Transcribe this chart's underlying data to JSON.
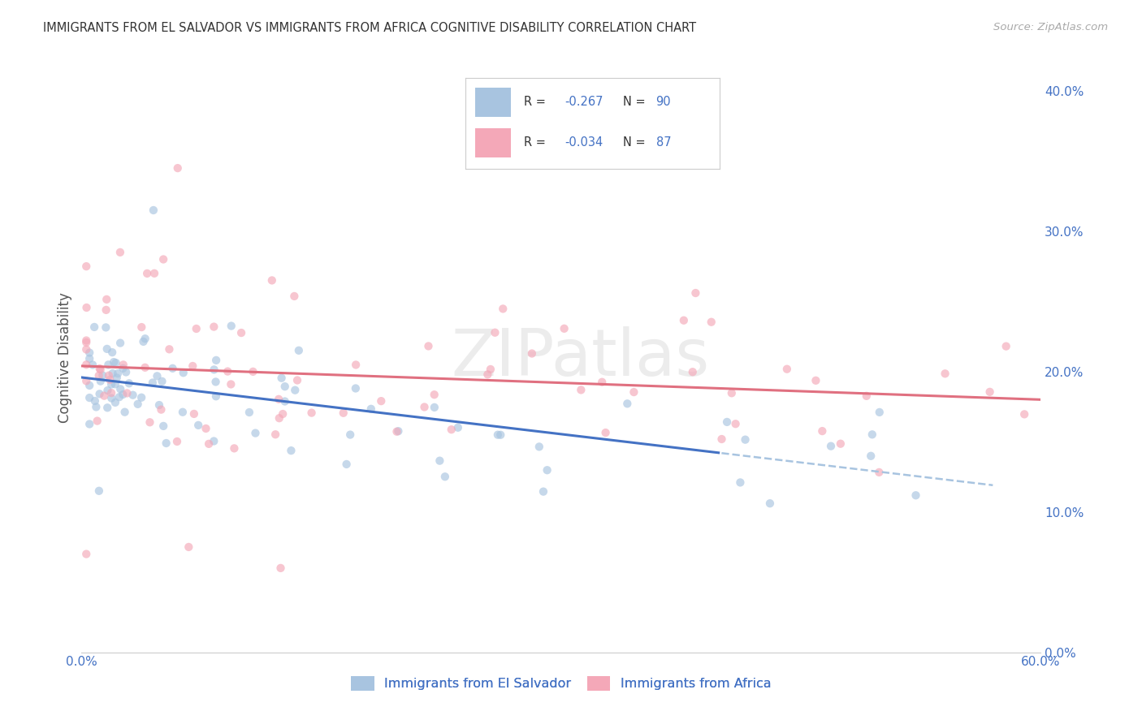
{
  "title": "IMMIGRANTS FROM EL SALVADOR VS IMMIGRANTS FROM AFRICA COGNITIVE DISABILITY CORRELATION CHART",
  "source": "Source: ZipAtlas.com",
  "ylabel": "Cognitive Disability",
  "xlim": [
    0,
    60
  ],
  "ylim": [
    0,
    42
  ],
  "R_salvador": -0.267,
  "N_salvador": 90,
  "R_africa": -0.034,
  "N_africa": 87,
  "color_salvador": "#a8c4e0",
  "color_africa": "#f4a8b8",
  "trendline_color_salvador": "#4472c4",
  "trendline_color_africa": "#e07080",
  "trendline_dashed_color_salvador": "#a8c4e0",
  "watermark_text": "ZIPatlas",
  "legend_labels": [
    "Immigrants from El Salvador",
    "Immigrants from Africa"
  ],
  "background_color": "#ffffff",
  "grid_color": "#cccccc",
  "title_color": "#333333",
  "axis_label_color": "#555555",
  "blue_text_color": "#4472c4",
  "black_text_color": "#333333",
  "scatter_alpha": 0.65,
  "scatter_size": 55
}
